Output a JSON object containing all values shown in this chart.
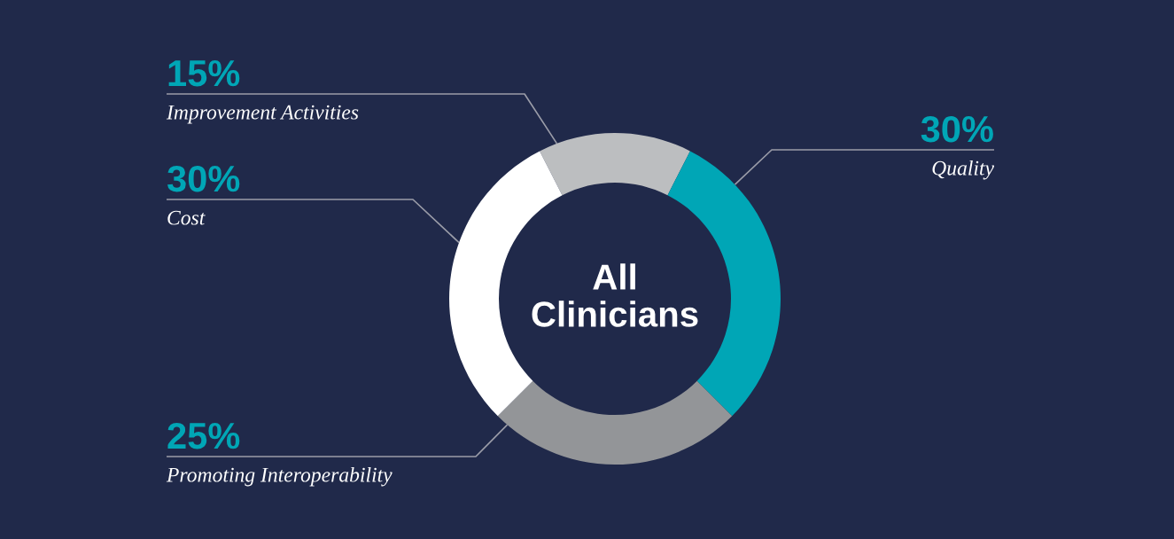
{
  "chart_data": {
    "type": "donut",
    "title": "All Clinicians",
    "categories": [
      "Improvement Activities",
      "Quality",
      "Promoting Interoperability",
      "Cost"
    ],
    "values": [
      15,
      30,
      25,
      30
    ],
    "colors": [
      "#bcbec0",
      "#00a6b6",
      "#939598",
      "#ffffff"
    ],
    "value_labels": [
      "15%",
      "30%",
      "25%",
      "30%"
    ]
  }
}
